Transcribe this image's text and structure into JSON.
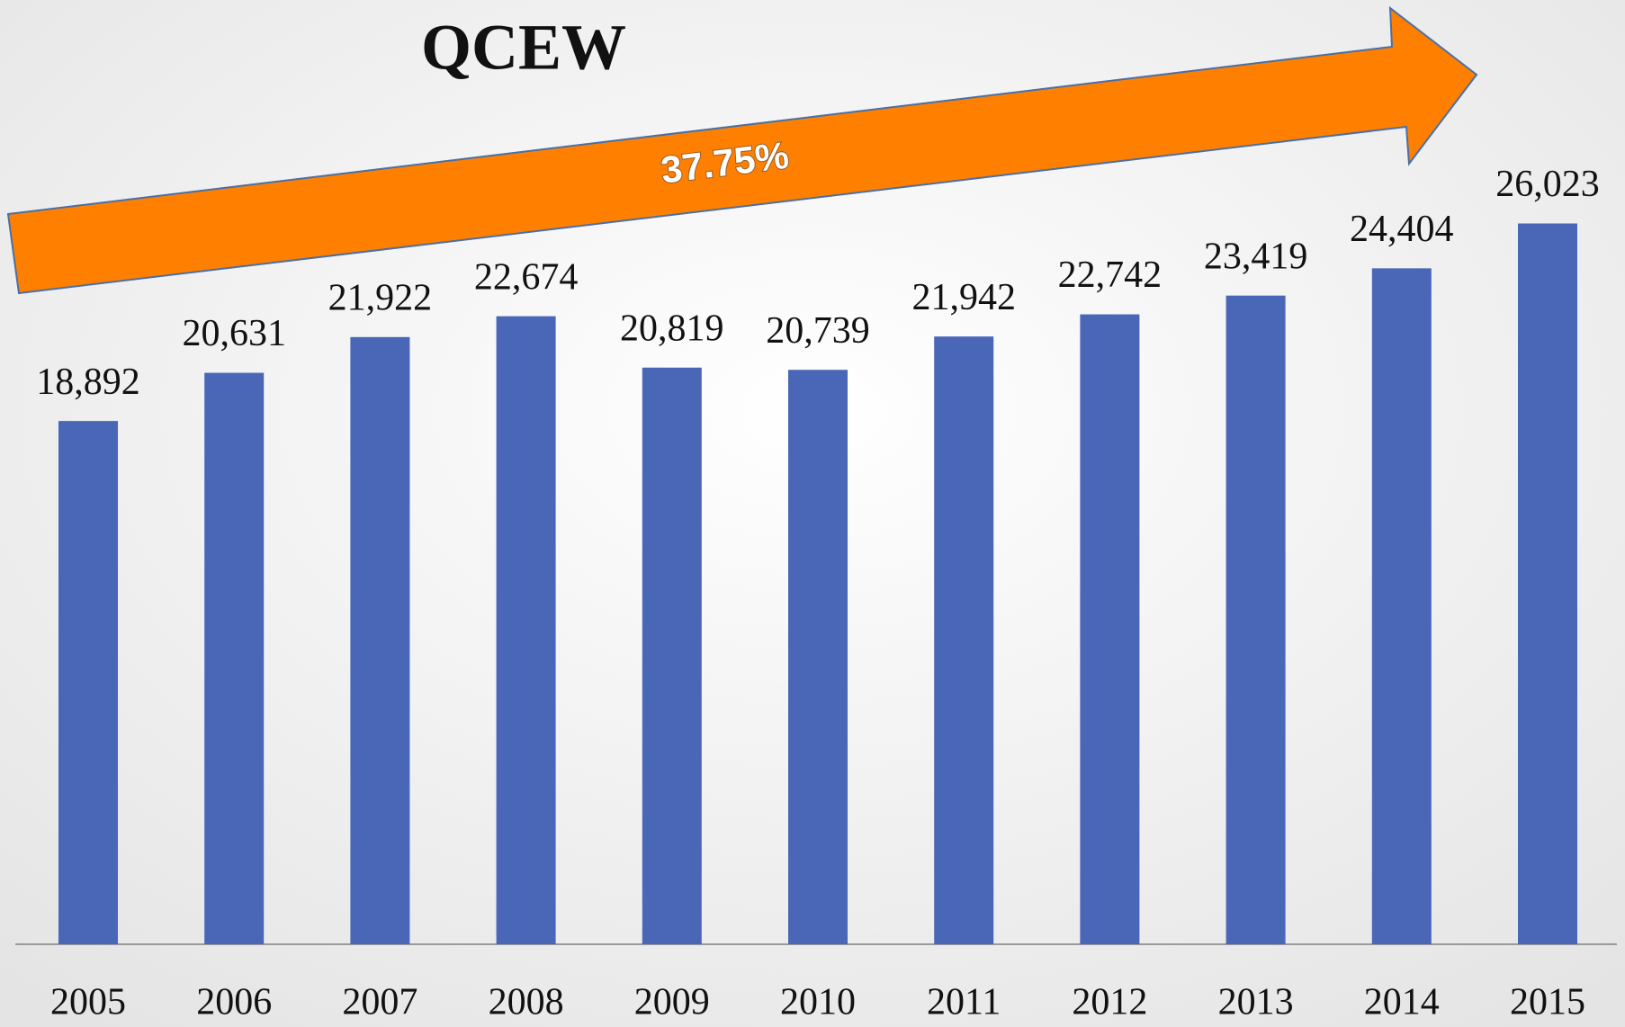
{
  "chart_data": {
    "type": "bar",
    "title": "QCEW",
    "annotation": "37.75%",
    "categories": [
      "2005",
      "2006",
      "2007",
      "2008",
      "2009",
      "2010",
      "2011",
      "2012",
      "2013",
      "2014",
      "2015"
    ],
    "values": [
      18892,
      20631,
      21922,
      22674,
      20819,
      20739,
      21942,
      22742,
      23419,
      24404,
      26023
    ],
    "value_labels": [
      "18,892",
      "20,631",
      "21,922",
      "22,674",
      "20,819",
      "20,739",
      "21,942",
      "22,742",
      "23,419",
      "24,404",
      "26,023"
    ],
    "color": "#4a66b6",
    "ylim": [
      0,
      30000
    ]
  }
}
